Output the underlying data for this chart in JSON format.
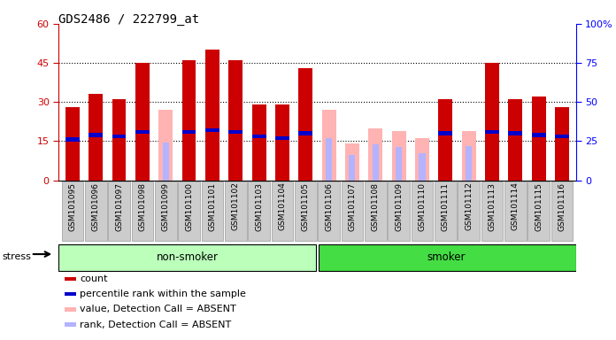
{
  "title": "GDS2486 / 222799_at",
  "samples": [
    "GSM101095",
    "GSM101096",
    "GSM101097",
    "GSM101098",
    "GSM101099",
    "GSM101100",
    "GSM101101",
    "GSM101102",
    "GSM101103",
    "GSM101104",
    "GSM101105",
    "GSM101106",
    "GSM101107",
    "GSM101108",
    "GSM101109",
    "GSM101110",
    "GSM101111",
    "GSM101112",
    "GSM101113",
    "GSM101114",
    "GSM101115",
    "GSM101116"
  ],
  "count": [
    28,
    33,
    31,
    45,
    0,
    46,
    50,
    46,
    29,
    29,
    43,
    0,
    0,
    0,
    0,
    0,
    31,
    0,
    45,
    31,
    32,
    28
  ],
  "percentile_rank": [
    26,
    29,
    28,
    31,
    0,
    31,
    32,
    31,
    28,
    27,
    30,
    0,
    0,
    0,
    0,
    0,
    30,
    0,
    31,
    30,
    29,
    28
  ],
  "value_absent": [
    0,
    0,
    0,
    0,
    27,
    0,
    0,
    0,
    0,
    0,
    0,
    27,
    14,
    20,
    19,
    16,
    0,
    19,
    0,
    0,
    0,
    0
  ],
  "rank_absent": [
    0,
    0,
    0,
    0,
    24,
    0,
    0,
    0,
    0,
    0,
    0,
    27,
    16,
    23,
    21,
    17,
    0,
    22,
    0,
    0,
    0,
    0
  ],
  "ylim_left": [
    0,
    60
  ],
  "ylim_right": [
    0,
    100
  ],
  "left_ticks": [
    0,
    15,
    30,
    45,
    60
  ],
  "right_ticks": [
    0,
    25,
    50,
    75,
    100
  ],
  "nonsmoker_count": 11,
  "smoker_count": 11,
  "color_count": "#cc0000",
  "color_rank": "#0000cc",
  "color_absent_value": "#ffb3b3",
  "color_absent_rank": "#b3b3ff",
  "color_nonsmoker": "#bbffbb",
  "color_smoker": "#44dd44",
  "title_fontsize": 10,
  "legend": [
    {
      "label": "count",
      "color": "#cc0000"
    },
    {
      "label": "percentile rank within the sample",
      "color": "#0000cc"
    },
    {
      "label": "value, Detection Call = ABSENT",
      "color": "#ffb3b3"
    },
    {
      "label": "rank, Detection Call = ABSENT",
      "color": "#b3b3ff"
    }
  ]
}
